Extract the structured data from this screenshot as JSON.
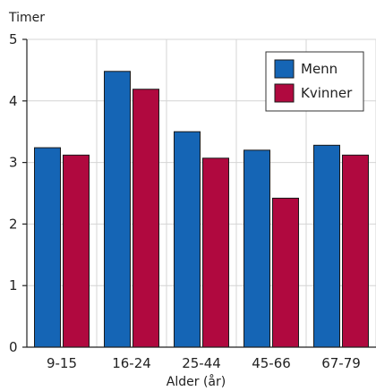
{
  "chart_data": {
    "type": "bar",
    "title": "",
    "ylabel": "Timer",
    "xlabel": "Alder (år)",
    "categories": [
      "9-15",
      "16-24",
      "25-44",
      "45-66",
      "67-79"
    ],
    "series": [
      {
        "name": "Menn",
        "color": "#1565b5",
        "values": [
          3.24,
          4.48,
          3.5,
          3.2,
          3.28
        ]
      },
      {
        "name": "Kvinner",
        "color": "#b0093f",
        "values": [
          3.12,
          4.19,
          3.07,
          2.42,
          3.12
        ]
      }
    ],
    "ylim": [
      0,
      5
    ],
    "yticks": [
      "0",
      "1",
      "2",
      "3",
      "4",
      "5"
    ],
    "grid": true,
    "legend_position": "top-right"
  }
}
